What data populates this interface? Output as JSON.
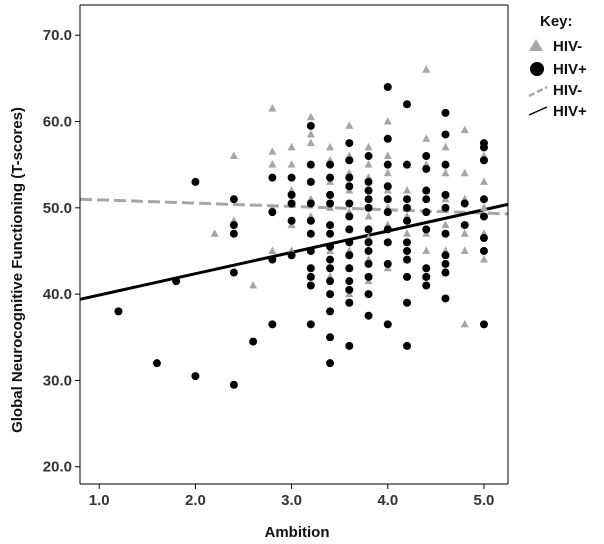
{
  "chart_data": {
    "type": "scatter",
    "xlabel": "Ambition",
    "ylabel": "Global Neurocognitive Functioning (T-scores)",
    "xlim": [
      0.8,
      5.25
    ],
    "ylim": [
      18,
      73.5
    ],
    "x_ticks": [
      1.0,
      2.0,
      3.0,
      4.0,
      5.0
    ],
    "x_tick_labels": [
      "1.0",
      "2.0",
      "3.0",
      "4.0",
      "5.0"
    ],
    "y_ticks": [
      20,
      30,
      40,
      50,
      60,
      70
    ],
    "y_tick_labels": [
      "20.0",
      "30.0",
      "40.0",
      "50.0",
      "60.0",
      "70.0"
    ],
    "legend": {
      "title": "Key:",
      "position": "top-right",
      "entries": [
        {
          "label": "HIV-",
          "kind": "triangle-marker",
          "color": "#a6a6a6"
        },
        {
          "label": "HIV+",
          "kind": "circle-marker",
          "color": "#000000"
        },
        {
          "label": "HIV-",
          "kind": "dashed-line",
          "color": "#a6a6a6"
        },
        {
          "label": "HIV+",
          "kind": "solid-line",
          "color": "#000000"
        }
      ]
    },
    "series": [
      {
        "group": "HIV-",
        "marker": "triangle",
        "color": "#a6a6a6",
        "points": [
          [
            2.4,
            56.0
          ],
          [
            2.2,
            47.0
          ],
          [
            2.4,
            48.5
          ],
          [
            2.6,
            41.0
          ],
          [
            2.8,
            61.5
          ],
          [
            2.8,
            56.5
          ],
          [
            2.8,
            55.0
          ],
          [
            2.8,
            50.0
          ],
          [
            2.8,
            45.0
          ],
          [
            3.0,
            57.0
          ],
          [
            3.0,
            55.0
          ],
          [
            3.0,
            52.0
          ],
          [
            3.0,
            50.5
          ],
          [
            3.0,
            48.0
          ],
          [
            3.0,
            45.0
          ],
          [
            3.2,
            60.5
          ],
          [
            3.2,
            58.5
          ],
          [
            3.2,
            57.5
          ],
          [
            3.2,
            55.0
          ],
          [
            3.2,
            53.0
          ],
          [
            3.2,
            51.0
          ],
          [
            3.2,
            49.0
          ],
          [
            3.2,
            47.0
          ],
          [
            3.2,
            45.0
          ],
          [
            3.2,
            42.0
          ],
          [
            3.4,
            57.0
          ],
          [
            3.4,
            55.5
          ],
          [
            3.4,
            53.0
          ],
          [
            3.4,
            50.0
          ],
          [
            3.4,
            48.0
          ],
          [
            3.4,
            45.0
          ],
          [
            3.4,
            42.0
          ],
          [
            3.6,
            59.5
          ],
          [
            3.6,
            56.0
          ],
          [
            3.6,
            54.0
          ],
          [
            3.6,
            52.0
          ],
          [
            3.6,
            49.5
          ],
          [
            3.6,
            47.5
          ],
          [
            3.6,
            45.0
          ],
          [
            3.6,
            43.0
          ],
          [
            3.6,
            40.0
          ],
          [
            3.8,
            57.0
          ],
          [
            3.8,
            55.0
          ],
          [
            3.8,
            53.5
          ],
          [
            3.8,
            51.0
          ],
          [
            3.8,
            49.0
          ],
          [
            3.8,
            46.5
          ],
          [
            3.8,
            44.0
          ],
          [
            3.8,
            41.5
          ],
          [
            4.0,
            60.0
          ],
          [
            4.0,
            56.0
          ],
          [
            4.0,
            54.0
          ],
          [
            4.0,
            52.0
          ],
          [
            4.0,
            50.0
          ],
          [
            4.0,
            48.0
          ],
          [
            4.0,
            46.0
          ],
          [
            4.0,
            43.0
          ],
          [
            4.2,
            55.0
          ],
          [
            4.2,
            52.0
          ],
          [
            4.2,
            49.0
          ],
          [
            4.2,
            47.0
          ],
          [
            4.2,
            44.0
          ],
          [
            4.4,
            66.0
          ],
          [
            4.4,
            58.0
          ],
          [
            4.4,
            55.0
          ],
          [
            4.4,
            52.0
          ],
          [
            4.4,
            49.5
          ],
          [
            4.4,
            47.0
          ],
          [
            4.4,
            45.0
          ],
          [
            4.4,
            42.0
          ],
          [
            4.6,
            57.0
          ],
          [
            4.6,
            54.0
          ],
          [
            4.6,
            51.0
          ],
          [
            4.6,
            48.0
          ],
          [
            4.6,
            45.0
          ],
          [
            4.6,
            42.5
          ],
          [
            4.8,
            59.0
          ],
          [
            4.8,
            54.0
          ],
          [
            4.8,
            51.0
          ],
          [
            4.8,
            47.0
          ],
          [
            4.8,
            45.0
          ],
          [
            4.8,
            36.5
          ],
          [
            5.0,
            56.0
          ],
          [
            5.0,
            53.0
          ],
          [
            5.0,
            50.0
          ],
          [
            5.0,
            47.0
          ],
          [
            5.0,
            44.0
          ]
        ]
      },
      {
        "group": "HIV+",
        "marker": "circle",
        "color": "#000000",
        "points": [
          [
            1.2,
            38.0
          ],
          [
            1.6,
            32.0
          ],
          [
            1.8,
            41.5
          ],
          [
            2.0,
            53.0
          ],
          [
            2.0,
            30.5
          ],
          [
            2.4,
            51.0
          ],
          [
            2.4,
            48.0
          ],
          [
            2.4,
            47.0
          ],
          [
            2.4,
            42.5
          ],
          [
            2.4,
            29.5
          ],
          [
            2.6,
            34.5
          ],
          [
            2.8,
            53.5
          ],
          [
            2.8,
            49.5
          ],
          [
            2.8,
            44.0
          ],
          [
            2.8,
            36.5
          ],
          [
            3.0,
            53.5
          ],
          [
            3.0,
            51.5
          ],
          [
            3.0,
            50.5
          ],
          [
            3.0,
            48.5
          ],
          [
            3.0,
            44.5
          ],
          [
            3.2,
            59.5
          ],
          [
            3.2,
            55.0
          ],
          [
            3.2,
            53.0
          ],
          [
            3.2,
            50.5
          ],
          [
            3.2,
            48.5
          ],
          [
            3.2,
            47.0
          ],
          [
            3.2,
            45.0
          ],
          [
            3.2,
            43.0
          ],
          [
            3.2,
            42.0
          ],
          [
            3.2,
            41.0
          ],
          [
            3.2,
            36.5
          ],
          [
            3.4,
            55.0
          ],
          [
            3.4,
            53.5
          ],
          [
            3.4,
            51.5
          ],
          [
            3.4,
            50.5
          ],
          [
            3.4,
            48.0
          ],
          [
            3.4,
            47.0
          ],
          [
            3.4,
            45.5
          ],
          [
            3.4,
            44.0
          ],
          [
            3.4,
            43.0
          ],
          [
            3.4,
            41.5
          ],
          [
            3.4,
            40.0
          ],
          [
            3.4,
            38.0
          ],
          [
            3.4,
            35.0
          ],
          [
            3.4,
            32.0
          ],
          [
            3.6,
            57.5
          ],
          [
            3.6,
            55.5
          ],
          [
            3.6,
            53.5
          ],
          [
            3.6,
            52.5
          ],
          [
            3.6,
            50.5
          ],
          [
            3.6,
            49.0
          ],
          [
            3.6,
            47.5
          ],
          [
            3.6,
            46.0
          ],
          [
            3.6,
            44.5
          ],
          [
            3.6,
            43.0
          ],
          [
            3.6,
            41.5
          ],
          [
            3.6,
            40.5
          ],
          [
            3.6,
            39.0
          ],
          [
            3.6,
            34.0
          ],
          [
            3.8,
            56.0
          ],
          [
            3.8,
            53.0
          ],
          [
            3.8,
            52.0
          ],
          [
            3.8,
            51.0
          ],
          [
            3.8,
            50.0
          ],
          [
            3.8,
            47.5
          ],
          [
            3.8,
            46.0
          ],
          [
            3.8,
            45.0
          ],
          [
            3.8,
            43.5
          ],
          [
            3.8,
            42.0
          ],
          [
            3.8,
            40.0
          ],
          [
            3.8,
            37.5
          ],
          [
            4.0,
            64.0
          ],
          [
            4.0,
            58.0
          ],
          [
            4.0,
            55.0
          ],
          [
            4.0,
            52.5
          ],
          [
            4.0,
            51.0
          ],
          [
            4.0,
            49.5
          ],
          [
            4.0,
            47.5
          ],
          [
            4.0,
            46.0
          ],
          [
            4.0,
            43.5
          ],
          [
            4.0,
            36.5
          ],
          [
            4.2,
            62.0
          ],
          [
            4.2,
            55.0
          ],
          [
            4.2,
            51.0
          ],
          [
            4.2,
            50.0
          ],
          [
            4.2,
            48.5
          ],
          [
            4.2,
            46.0
          ],
          [
            4.2,
            45.0
          ],
          [
            4.2,
            44.0
          ],
          [
            4.2,
            42.0
          ],
          [
            4.2,
            39.0
          ],
          [
            4.2,
            34.0
          ],
          [
            4.4,
            56.0
          ],
          [
            4.4,
            54.5
          ],
          [
            4.4,
            52.0
          ],
          [
            4.4,
            51.0
          ],
          [
            4.4,
            49.5
          ],
          [
            4.4,
            47.5
          ],
          [
            4.4,
            43.0
          ],
          [
            4.4,
            42.0
          ],
          [
            4.4,
            41.0
          ],
          [
            4.6,
            61.0
          ],
          [
            4.6,
            58.5
          ],
          [
            4.6,
            55.0
          ],
          [
            4.6,
            51.5
          ],
          [
            4.6,
            50.0
          ],
          [
            4.6,
            47.0
          ],
          [
            4.6,
            44.5
          ],
          [
            4.6,
            43.5
          ],
          [
            4.6,
            42.5
          ],
          [
            4.6,
            39.5
          ],
          [
            4.8,
            50.5
          ],
          [
            4.8,
            48.0
          ],
          [
            5.0,
            57.5
          ],
          [
            5.0,
            57.0
          ],
          [
            5.0,
            55.5
          ],
          [
            5.0,
            51.0
          ],
          [
            5.0,
            49.0
          ],
          [
            5.0,
            46.5
          ],
          [
            5.0,
            45.0
          ],
          [
            5.0,
            36.5
          ]
        ]
      }
    ],
    "fit_lines": [
      {
        "group": "HIV-",
        "style": "dashed",
        "color": "#a6a6a6",
        "x": [
          0.8,
          5.25
        ],
        "y": [
          51.0,
          49.3
        ]
      },
      {
        "group": "HIV+",
        "style": "solid",
        "color": "#000000",
        "x": [
          0.8,
          5.25
        ],
        "y": [
          39.4,
          50.4
        ]
      }
    ]
  }
}
